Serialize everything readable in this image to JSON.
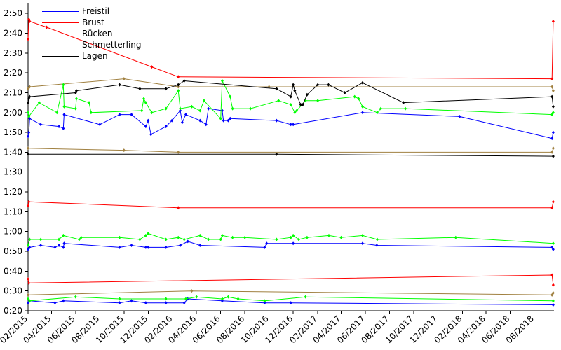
{
  "chart_data": {
    "type": "line",
    "title": "",
    "xlabel": "",
    "ylabel": "",
    "x_type": "date",
    "x_range": [
      "2015-02-01",
      "2018-09-20"
    ],
    "x_ticks": [
      "02/2015",
      "04/2015",
      "06/2015",
      "08/2015",
      "10/2015",
      "12/2015",
      "02/2016",
      "04/2016",
      "06/2016",
      "08/2016",
      "10/2016",
      "12/2016",
      "02/2017",
      "04/2017",
      "06/2017",
      "08/2017",
      "10/2017",
      "12/2017",
      "02/2018",
      "04/2018",
      "06/2018",
      "08/2018"
    ],
    "y_unit": "seconds",
    "ylim": [
      20,
      175
    ],
    "y_ticks": [
      20,
      30,
      40,
      50,
      60,
      70,
      80,
      90,
      100,
      110,
      120,
      130,
      140,
      150,
      160,
      170
    ],
    "y_tick_labels": [
      "0:20",
      "0:30",
      "0:40",
      "0:50",
      "1:00",
      "1:10",
      "1:20",
      "1:30",
      "1:40",
      "1:50",
      "2:00",
      "2:10",
      "2:20",
      "2:30",
      "2:40",
      "2:50"
    ],
    "grid": false,
    "legend_position": "top-left",
    "series": [
      {
        "name": "Freistil",
        "color": "#0000ff",
        "markers": true,
        "segments": [
          [
            [
              "2015-02-01",
              108
            ],
            [
              "2015-02-03",
              110
            ],
            [
              "2015-02-05",
              117
            ],
            [
              "2015-03-05",
              114
            ],
            [
              "2015-04-20",
              113
            ],
            [
              "2015-05-01",
              112
            ],
            [
              "2015-05-03",
              119
            ],
            [
              "2015-08-01",
              114
            ],
            [
              "2015-09-20",
              119
            ],
            [
              "2015-10-20",
              119
            ],
            [
              "2015-11-25",
              113
            ],
            [
              "2015-12-01",
              116
            ],
            [
              "2015-12-08",
              109
            ],
            [
              "2016-01-15",
              113
            ],
            [
              "2016-01-30",
              116
            ],
            [
              "2016-02-20",
              121
            ],
            [
              "2016-02-25",
              115
            ],
            [
              "2016-03-05",
              119
            ],
            [
              "2016-04-10",
              116
            ],
            [
              "2016-04-25",
              114
            ],
            [
              "2016-05-01",
              122
            ],
            [
              "2016-06-05",
              121
            ],
            [
              "2016-06-08",
              116
            ],
            [
              "2016-06-20",
              116
            ],
            [
              "2016-06-25",
              117
            ],
            [
              "2016-10-20",
              116
            ],
            [
              "2016-11-25",
              114
            ],
            [
              "2016-12-01",
              114
            ],
            [
              "2017-05-25",
              120
            ],
            [
              "2018-01-25",
              118
            ],
            [
              "2018-09-15",
              107
            ],
            [
              "2018-09-18",
              110
            ]
          ],
          [
            [
              "2015-02-01",
              51
            ],
            [
              "2015-02-05",
              52
            ],
            [
              "2015-03-05",
              53
            ],
            [
              "2015-04-10",
              52
            ],
            [
              "2015-04-20",
              53
            ],
            [
              "2015-05-01",
              52
            ],
            [
              "2015-05-03",
              54
            ],
            [
              "2015-09-20",
              52
            ],
            [
              "2015-10-20",
              53
            ],
            [
              "2015-11-25",
              52
            ],
            [
              "2015-12-01",
              52
            ],
            [
              "2016-01-15",
              52
            ],
            [
              "2016-02-20",
              53
            ],
            [
              "2016-03-10",
              55
            ],
            [
              "2016-04-10",
              53
            ],
            [
              "2016-09-20",
              52
            ],
            [
              "2016-09-25",
              54
            ],
            [
              "2016-12-01",
              54
            ],
            [
              "2017-05-25",
              54
            ],
            [
              "2017-06-30",
              53
            ],
            [
              "2018-09-15",
              52
            ],
            [
              "2018-09-18",
              51
            ]
          ],
          [
            [
              "2015-02-01",
              24
            ],
            [
              "2015-02-05",
              25
            ],
            [
              "2015-04-10",
              24
            ],
            [
              "2015-05-01",
              25
            ],
            [
              "2015-09-20",
              24
            ],
            [
              "2015-10-20",
              25
            ],
            [
              "2015-11-25",
              24
            ],
            [
              "2016-01-15",
              24
            ],
            [
              "2016-03-01",
              24
            ],
            [
              "2016-03-10",
              26
            ],
            [
              "2016-06-05",
              25
            ],
            [
              "2016-09-20",
              24
            ],
            [
              "2016-11-25",
              24
            ],
            [
              "2018-09-18",
              23
            ]
          ]
        ]
      },
      {
        "name": "Brust",
        "color": "#ff0000",
        "markers": true,
        "segments": [
          [
            [
              "2015-02-01",
              157
            ],
            [
              "2015-02-03",
              167
            ],
            [
              "2015-02-05",
              166
            ],
            [
              "2015-03-20",
              163
            ],
            [
              "2015-12-10",
              143
            ],
            [
              "2016-02-15",
              138
            ],
            [
              "2018-09-15",
              137
            ],
            [
              "2018-09-18",
              166
            ]
          ],
          [
            [
              "2015-02-01",
              73
            ],
            [
              "2015-02-03",
              75
            ],
            [
              "2016-02-15",
              72
            ],
            [
              "2018-09-15",
              72
            ],
            [
              "2018-09-18",
              75
            ]
          ],
          [
            [
              "2015-02-01",
              36
            ],
            [
              "2015-02-03",
              34
            ],
            [
              "2018-09-15",
              38
            ],
            [
              "2018-09-18",
              33
            ]
          ]
        ]
      },
      {
        "name": "Rücken",
        "color": "#a08040",
        "markers": true,
        "segments": [
          [
            [
              "2015-02-01",
              132
            ],
            [
              "2015-02-05",
              133
            ],
            [
              "2015-10-01",
              137
            ],
            [
              "2016-02-15",
              133
            ],
            [
              "2016-10-01",
              133
            ],
            [
              "2018-09-15",
              133
            ],
            [
              "2018-09-18",
              131
            ]
          ],
          [
            [
              "2015-02-01",
              102
            ],
            [
              "2015-10-01",
              101
            ],
            [
              "2016-02-15",
              100
            ],
            [
              "2018-09-15",
              100
            ],
            [
              "2018-09-18",
              102
            ]
          ],
          [
            [
              "2015-02-01",
              28
            ],
            [
              "2016-03-20",
              30
            ],
            [
              "2018-09-15",
              28
            ],
            [
              "2018-09-18",
              29
            ]
          ]
        ]
      },
      {
        "name": "Schmetterling",
        "color": "#00ff00",
        "markers": true,
        "segments": [
          [
            [
              "2015-02-01",
              120
            ],
            [
              "2015-02-03",
              118
            ],
            [
              "2015-03-01",
              125
            ],
            [
              "2015-04-15",
              120
            ],
            [
              "2015-05-01",
              134
            ],
            [
              "2015-05-03",
              123
            ],
            [
              "2015-06-01",
              122
            ],
            [
              "2015-06-03",
              127
            ],
            [
              "2015-07-05",
              125
            ],
            [
              "2015-07-10",
              120
            ],
            [
              "2015-11-15",
              121
            ],
            [
              "2015-11-20",
              127
            ],
            [
              "2015-11-25",
              125
            ],
            [
              "2015-12-10",
              120
            ],
            [
              "2016-01-15",
              122
            ],
            [
              "2016-02-15",
              131
            ],
            [
              "2016-02-20",
              122
            ],
            [
              "2016-03-20",
              123
            ],
            [
              "2016-04-10",
              121
            ],
            [
              "2016-04-20",
              126
            ],
            [
              "2016-06-01",
              117
            ],
            [
              "2016-06-05",
              136
            ],
            [
              "2016-06-25",
              128
            ],
            [
              "2016-07-01",
              122
            ],
            [
              "2016-08-15",
              122
            ],
            [
              "2016-10-25",
              126
            ],
            [
              "2016-11-25",
              124
            ],
            [
              "2016-12-05",
              120
            ],
            [
              "2016-12-10",
              121
            ],
            [
              "2017-01-01",
              126
            ],
            [
              "2017-02-01",
              126
            ],
            [
              "2017-05-05",
              128
            ],
            [
              "2017-05-15",
              127
            ],
            [
              "2017-05-25",
              123
            ],
            [
              "2017-07-01",
              120
            ],
            [
              "2017-07-10",
              122
            ],
            [
              "2017-09-10",
              122
            ],
            [
              "2018-09-15",
              119
            ],
            [
              "2018-09-18",
              120
            ]
          ],
          [
            [
              "2015-02-01",
              53
            ],
            [
              "2015-02-05",
              56
            ],
            [
              "2015-03-05",
              56
            ],
            [
              "2015-04-20",
              56
            ],
            [
              "2015-05-01",
              58
            ],
            [
              "2015-06-10",
              56
            ],
            [
              "2015-06-15",
              57
            ],
            [
              "2015-09-20",
              57
            ],
            [
              "2015-11-10",
              56
            ],
            [
              "2015-11-25",
              58
            ],
            [
              "2015-12-01",
              59
            ],
            [
              "2016-01-15",
              56
            ],
            [
              "2016-02-15",
              57
            ],
            [
              "2016-03-01",
              56
            ],
            [
              "2016-04-10",
              58
            ],
            [
              "2016-05-01",
              56
            ],
            [
              "2016-06-01",
              56
            ],
            [
              "2016-06-05",
              58
            ],
            [
              "2016-07-01",
              57
            ],
            [
              "2016-08-01",
              57
            ],
            [
              "2016-10-20",
              56
            ],
            [
              "2016-11-25",
              57
            ],
            [
              "2016-12-01",
              58
            ],
            [
              "2016-12-15",
              56
            ],
            [
              "2017-01-05",
              57
            ],
            [
              "2017-03-01",
              58
            ],
            [
              "2017-04-01",
              57
            ],
            [
              "2017-05-25",
              58
            ],
            [
              "2017-07-01",
              56
            ],
            [
              "2018-01-15",
              57
            ],
            [
              "2018-09-18",
              54
            ]
          ],
          [
            [
              "2015-02-01",
              26
            ],
            [
              "2015-02-05",
              25
            ],
            [
              "2015-06-01",
              27
            ],
            [
              "2015-09-20",
              26
            ],
            [
              "2016-01-15",
              26
            ],
            [
              "2016-03-05",
              26
            ],
            [
              "2016-04-01",
              27
            ],
            [
              "2016-06-05",
              26
            ],
            [
              "2016-06-20",
              27
            ],
            [
              "2016-07-15",
              26
            ],
            [
              "2016-09-20",
              25
            ],
            [
              "2017-01-01",
              27
            ],
            [
              "2018-09-18",
              25
            ]
          ]
        ]
      },
      {
        "name": "Lagen",
        "color": "#000000",
        "markers": true,
        "segments": [
          [
            [
              "2015-02-01",
              125
            ],
            [
              "2015-02-03",
              127
            ],
            [
              "2015-02-05",
              128
            ],
            [
              "2015-06-01",
              130
            ],
            [
              "2015-06-03",
              131
            ],
            [
              "2015-09-20",
              134
            ],
            [
              "2015-11-10",
              132
            ],
            [
              "2016-01-15",
              132
            ],
            [
              "2016-02-15",
              134
            ],
            [
              "2016-03-01",
              136
            ],
            [
              "2016-10-20",
              132
            ],
            [
              "2016-11-25",
              128
            ],
            [
              "2016-12-01",
              134
            ],
            [
              "2016-12-05",
              131
            ],
            [
              "2016-12-20",
              124
            ],
            [
              "2016-12-25",
              124
            ],
            [
              "2017-01-05",
              129
            ],
            [
              "2017-02-01",
              134
            ],
            [
              "2017-02-28",
              134
            ],
            [
              "2017-04-10",
              130
            ],
            [
              "2017-05-25",
              135
            ],
            [
              "2017-09-05",
              125
            ],
            [
              "2018-09-15",
              128
            ],
            [
              "2018-09-18",
              123
            ]
          ],
          [
            [
              "2015-02-01",
              99
            ],
            [
              "2016-10-20",
              99
            ],
            [
              "2018-09-18",
              98
            ]
          ]
        ]
      }
    ]
  }
}
